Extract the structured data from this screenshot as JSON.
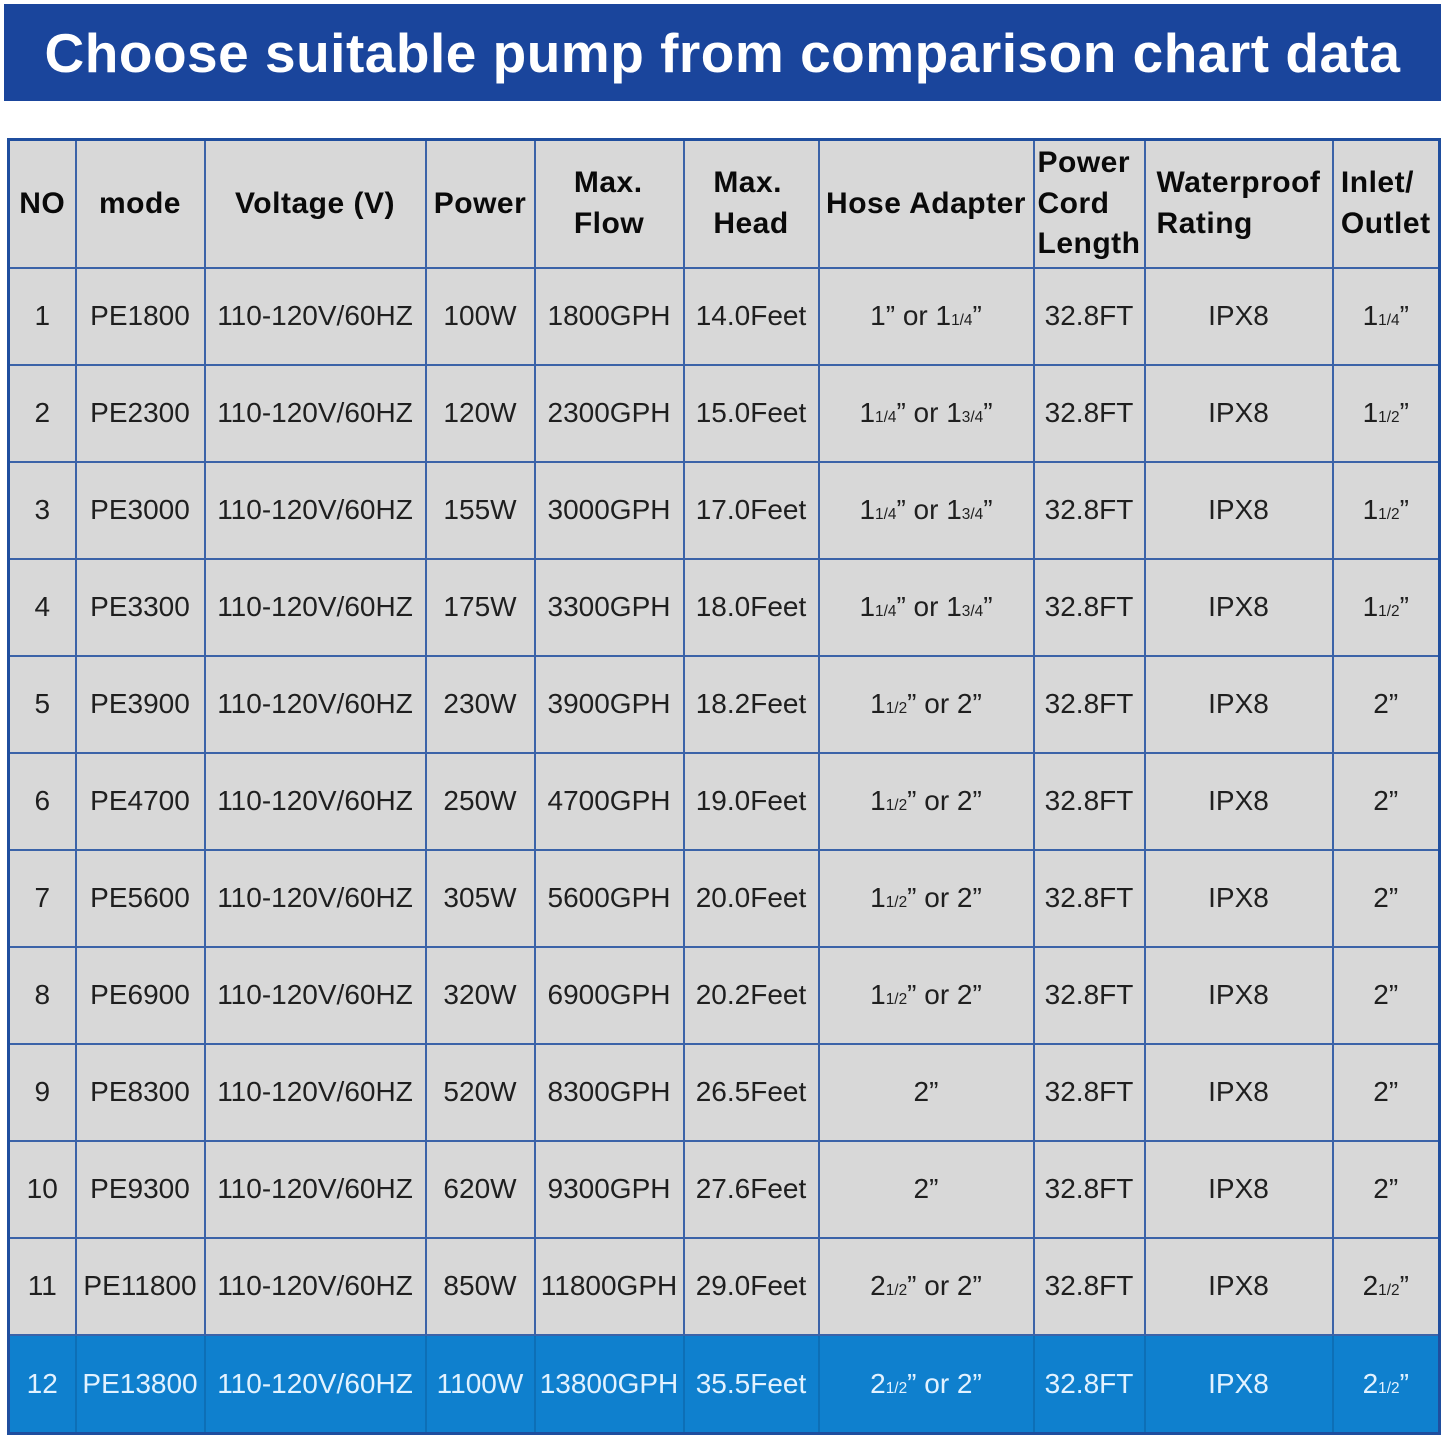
{
  "banner": {
    "title": "Choose suitable pump from comparison chart data",
    "bg_color": "#1a459c",
    "text_color": "#ffffff"
  },
  "colors": {
    "cell_bg": "#d8d8d8",
    "grid_border": "#3b63a8",
    "outer_border": "#1f4e9e",
    "highlight_bg": "#0f80ce",
    "highlight_text": "#e2f2ff",
    "body_text": "#1f1f1f"
  },
  "table": {
    "columns": [
      {
        "key": "no",
        "label": "NO"
      },
      {
        "key": "mode",
        "label": "mode"
      },
      {
        "key": "voltage",
        "label": "Voltage (V)"
      },
      {
        "key": "power",
        "label": "Power"
      },
      {
        "key": "flow",
        "label": "Max.\nFlow"
      },
      {
        "key": "head",
        "label": "Max.\nHead"
      },
      {
        "key": "hose",
        "label": "Hose Adapter"
      },
      {
        "key": "cord",
        "label": "Power\nCord\nLength"
      },
      {
        "key": "waterproof",
        "label": "Waterproof\nRating"
      },
      {
        "key": "inlet",
        "label": "Inlet/\nOutlet"
      }
    ],
    "rows": [
      {
        "no": "1",
        "mode": "PE1800",
        "voltage": "110-120V/60HZ",
        "power": "100W",
        "flow": "1800GPH",
        "head": "14.0Feet",
        "hose": "1” or 1{1/4}”",
        "cord": "32.8FT",
        "waterproof": "IPX8",
        "inlet": "1{1/4}”",
        "highlight": false
      },
      {
        "no": "2",
        "mode": "PE2300",
        "voltage": "110-120V/60HZ",
        "power": "120W",
        "flow": "2300GPH",
        "head": "15.0Feet",
        "hose": "1{1/4}” or 1{3/4}”",
        "cord": "32.8FT",
        "waterproof": "IPX8",
        "inlet": "1{1/2}”",
        "highlight": false
      },
      {
        "no": "3",
        "mode": "PE3000",
        "voltage": "110-120V/60HZ",
        "power": "155W",
        "flow": "3000GPH",
        "head": "17.0Feet",
        "hose": "1{1/4}” or 1{3/4}”",
        "cord": "32.8FT",
        "waterproof": "IPX8",
        "inlet": "1{1/2}”",
        "highlight": false
      },
      {
        "no": "4",
        "mode": "PE3300",
        "voltage": "110-120V/60HZ",
        "power": "175W",
        "flow": "3300GPH",
        "head": "18.0Feet",
        "hose": "1{1/4}” or 1{3/4}”",
        "cord": "32.8FT",
        "waterproof": "IPX8",
        "inlet": "1{1/2}”",
        "highlight": false
      },
      {
        "no": "5",
        "mode": "PE3900",
        "voltage": "110-120V/60HZ",
        "power": "230W",
        "flow": "3900GPH",
        "head": "18.2Feet",
        "hose": "1{1/2}” or 2”",
        "cord": "32.8FT",
        "waterproof": "IPX8",
        "inlet": "2”",
        "highlight": false
      },
      {
        "no": "6",
        "mode": "PE4700",
        "voltage": "110-120V/60HZ",
        "power": "250W",
        "flow": "4700GPH",
        "head": "19.0Feet",
        "hose": "1{1/2}” or 2”",
        "cord": "32.8FT",
        "waterproof": "IPX8",
        "inlet": "2”",
        "highlight": false
      },
      {
        "no": "7",
        "mode": "PE5600",
        "voltage": "110-120V/60HZ",
        "power": "305W",
        "flow": "5600GPH",
        "head": "20.0Feet",
        "hose": "1{1/2}” or 2”",
        "cord": "32.8FT",
        "waterproof": "IPX8",
        "inlet": "2”",
        "highlight": false
      },
      {
        "no": "8",
        "mode": "PE6900",
        "voltage": "110-120V/60HZ",
        "power": "320W",
        "flow": "6900GPH",
        "head": "20.2Feet",
        "hose": "1{1/2}” or 2”",
        "cord": "32.8FT",
        "waterproof": "IPX8",
        "inlet": "2”",
        "highlight": false
      },
      {
        "no": "9",
        "mode": "PE8300",
        "voltage": "110-120V/60HZ",
        "power": "520W",
        "flow": "8300GPH",
        "head": "26.5Feet",
        "hose": "2”",
        "cord": "32.8FT",
        "waterproof": "IPX8",
        "inlet": "2”",
        "highlight": false
      },
      {
        "no": "10",
        "mode": "PE9300",
        "voltage": "110-120V/60HZ",
        "power": "620W",
        "flow": "9300GPH",
        "head": "27.6Feet",
        "hose": "2”",
        "cord": "32.8FT",
        "waterproof": "IPX8",
        "inlet": "2”",
        "highlight": false
      },
      {
        "no": "11",
        "mode": "PE11800",
        "voltage": "110-120V/60HZ",
        "power": "850W",
        "flow": "11800GPH",
        "head": "29.0Feet",
        "hose": "2{1/2}” or 2”",
        "cord": "32.8FT",
        "waterproof": "IPX8",
        "inlet": "2{1/2}”",
        "highlight": false
      },
      {
        "no": "12",
        "mode": "PE13800",
        "voltage": "110-120V/60HZ",
        "power": "1100W",
        "flow": "13800GPH",
        "head": "35.5Feet",
        "hose": "2{1/2}” or 2”",
        "cord": "32.8FT",
        "waterproof": "IPX8",
        "inlet": "2{1/2}”",
        "highlight": true
      }
    ]
  },
  "chart_data": {
    "type": "table",
    "title": "Choose suitable pump from comparison chart data",
    "columns": [
      "NO",
      "mode",
      "Voltage (V)",
      "Power",
      "Max. Flow",
      "Max. Head",
      "Hose Adapter",
      "Power Cord Length",
      "Waterproof Rating",
      "Inlet/Outlet"
    ],
    "rows": [
      [
        "1",
        "PE1800",
        "110-120V/60HZ",
        "100W",
        "1800GPH",
        "14.0Feet",
        "1” or 1 1/4”",
        "32.8FT",
        "IPX8",
        "1 1/4”"
      ],
      [
        "2",
        "PE2300",
        "110-120V/60HZ",
        "120W",
        "2300GPH",
        "15.0Feet",
        "1 1/4” or 1 3/4”",
        "32.8FT",
        "IPX8",
        "1 1/2”"
      ],
      [
        "3",
        "PE3000",
        "110-120V/60HZ",
        "155W",
        "3000GPH",
        "17.0Feet",
        "1 1/4” or 1 3/4”",
        "32.8FT",
        "IPX8",
        "1 1/2”"
      ],
      [
        "4",
        "PE3300",
        "110-120V/60HZ",
        "175W",
        "3300GPH",
        "18.0Feet",
        "1 1/4” or 1 3/4”",
        "32.8FT",
        "IPX8",
        "1 1/2”"
      ],
      [
        "5",
        "PE3900",
        "110-120V/60HZ",
        "230W",
        "3900GPH",
        "18.2Feet",
        "1 1/2” or 2”",
        "32.8FT",
        "IPX8",
        "2”"
      ],
      [
        "6",
        "PE4700",
        "110-120V/60HZ",
        "250W",
        "4700GPH",
        "19.0Feet",
        "1 1/2” or 2”",
        "32.8FT",
        "IPX8",
        "2”"
      ],
      [
        "7",
        "PE5600",
        "110-120V/60HZ",
        "305W",
        "5600GPH",
        "20.0Feet",
        "1 1/2” or 2”",
        "32.8FT",
        "IPX8",
        "2”"
      ],
      [
        "8",
        "PE6900",
        "110-120V/60HZ",
        "320W",
        "6900GPH",
        "20.2Feet",
        "1 1/2” or 2”",
        "32.8FT",
        "IPX8",
        "2”"
      ],
      [
        "9",
        "PE8300",
        "110-120V/60HZ",
        "520W",
        "8300GPH",
        "26.5Feet",
        "2”",
        "32.8FT",
        "IPX8",
        "2”"
      ],
      [
        "10",
        "PE9300",
        "110-120V/60HZ",
        "620W",
        "9300GPH",
        "27.6Feet",
        "2”",
        "32.8FT",
        "IPX8",
        "2”"
      ],
      [
        "11",
        "PE11800",
        "110-120V/60HZ",
        "850W",
        "11800GPH",
        "29.0Feet",
        "2 1/2” or 2”",
        "32.8FT",
        "IPX8",
        "2 1/2”"
      ],
      [
        "12",
        "PE13800",
        "110-120V/60HZ",
        "1100W",
        "13800GPH",
        "35.5Feet",
        "2 1/2” or 2”",
        "32.8FT",
        "IPX8",
        "2 1/2”"
      ]
    ],
    "highlighted_row_no": "12",
    "legend_position": "none",
    "grid": true
  }
}
